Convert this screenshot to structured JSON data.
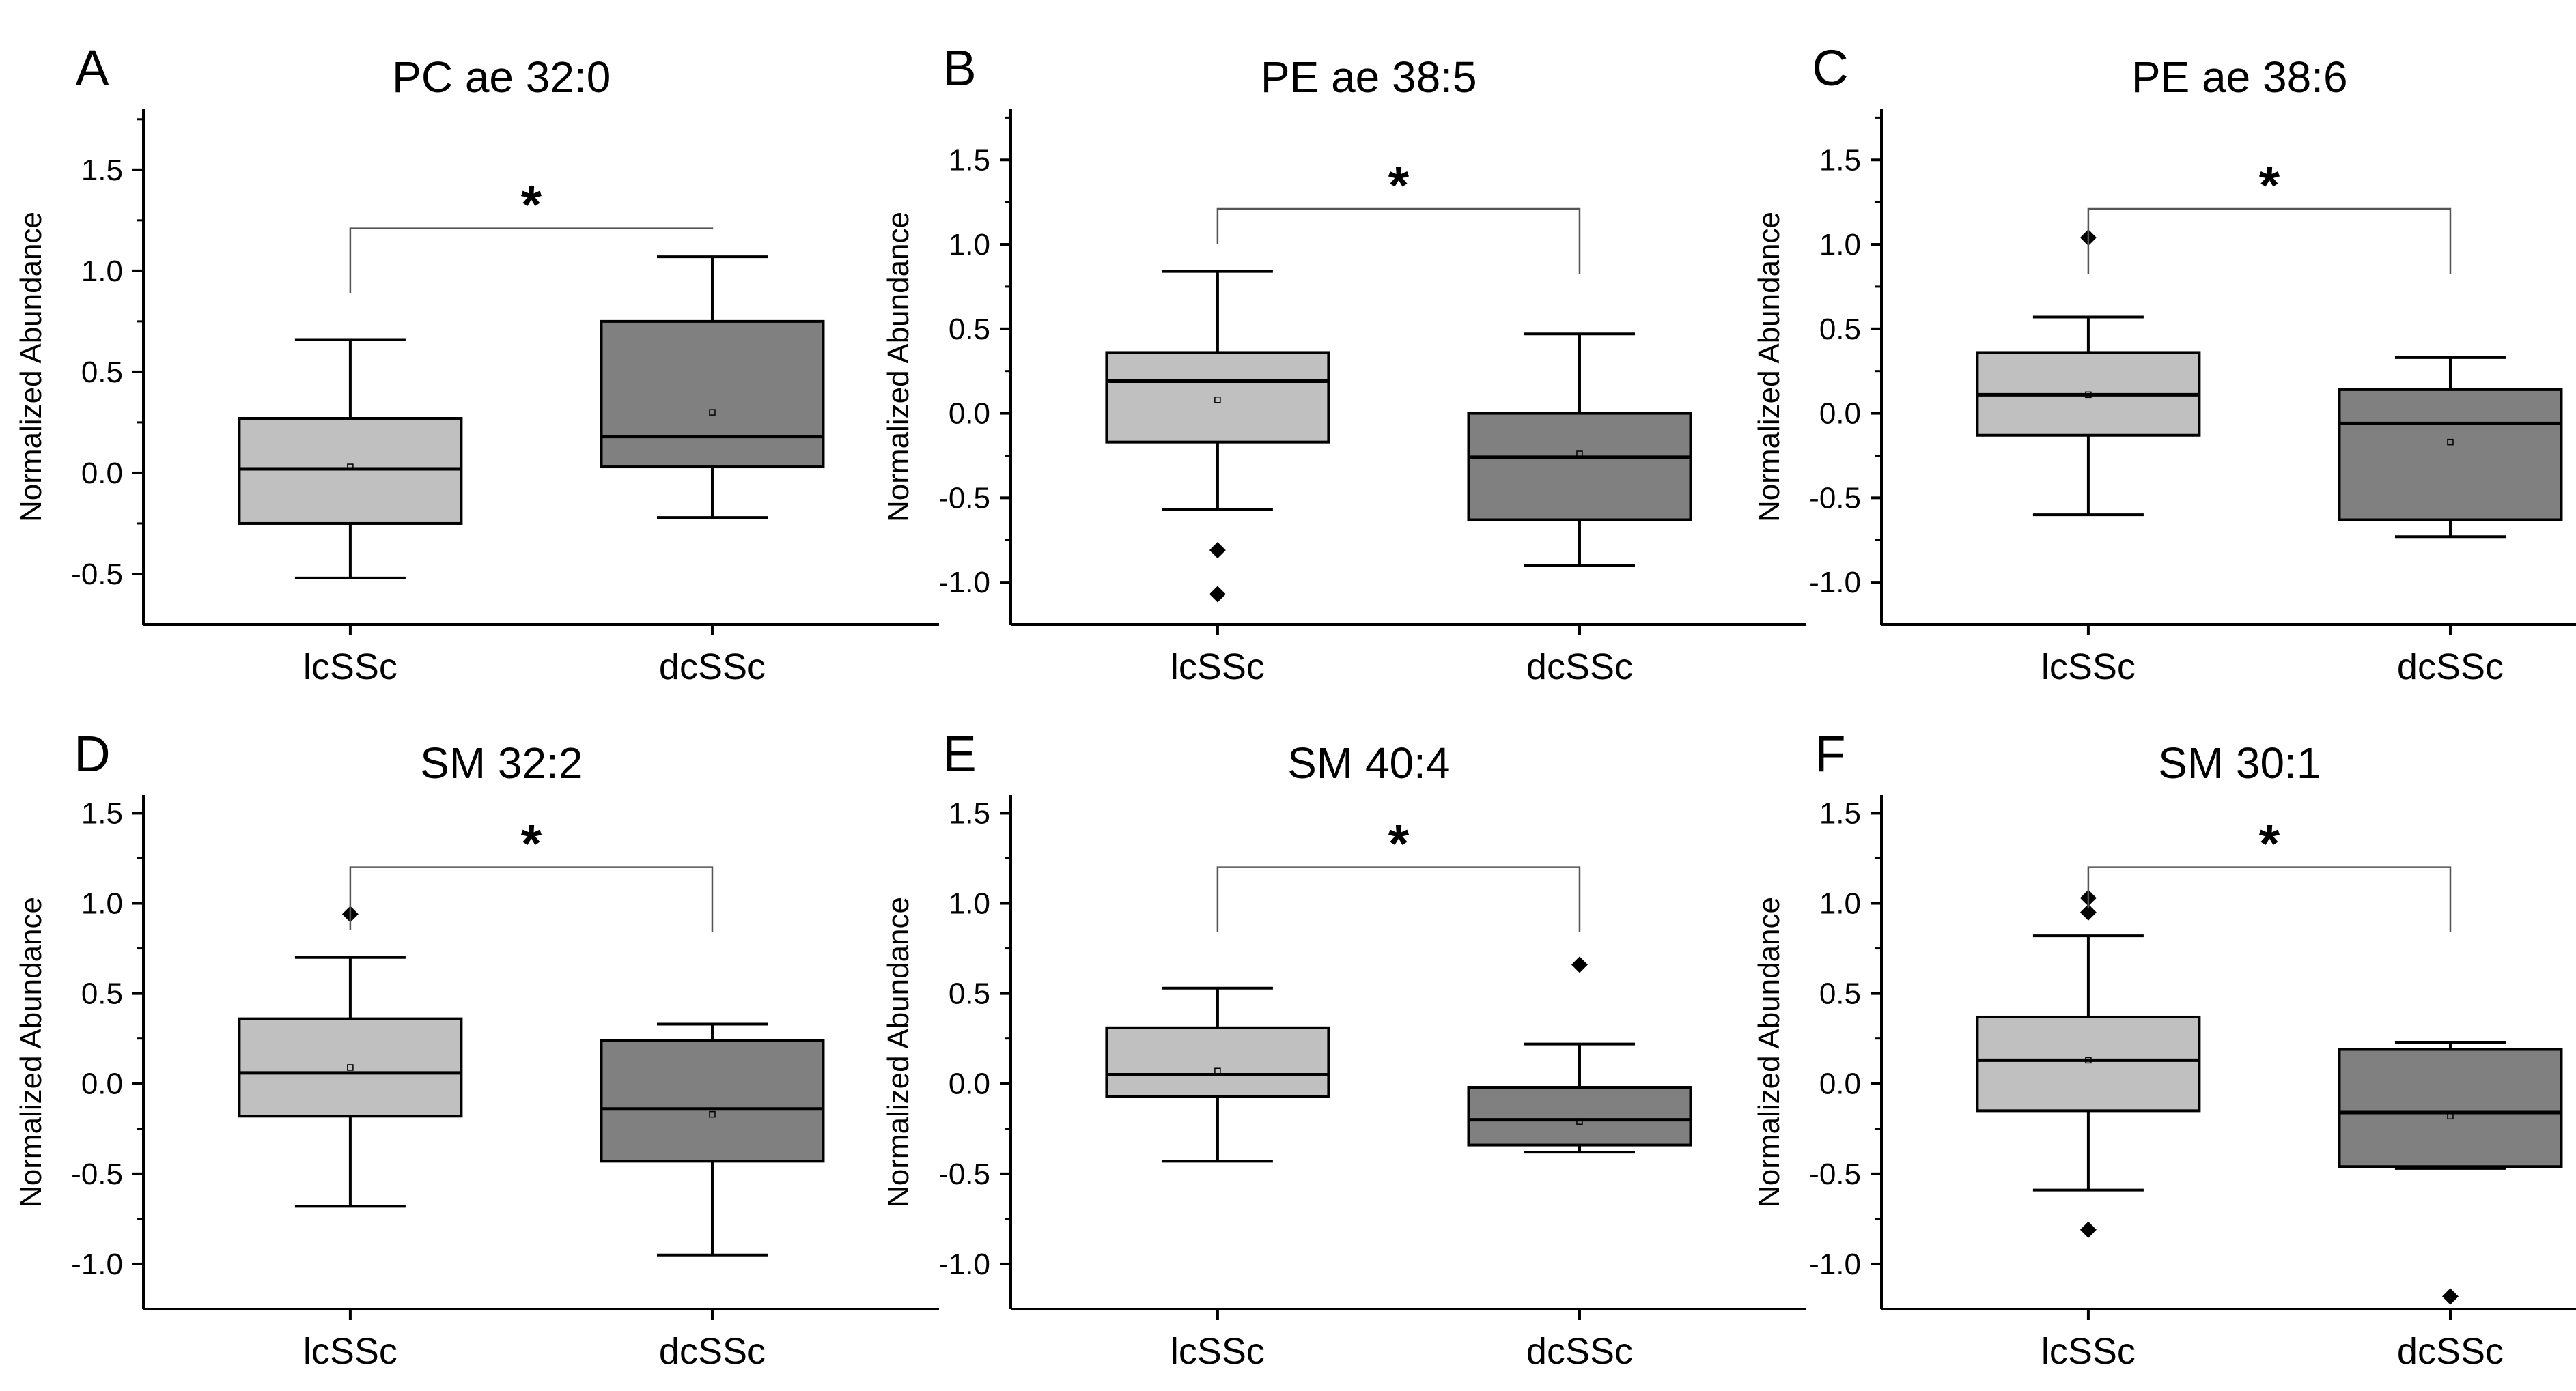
{
  "chart_data": [
    {
      "type": "box",
      "panel": "A",
      "title": "PC ae 32:0",
      "ylabel": "Normalized Abundance",
      "ylim": [
        -0.75,
        1.8
      ],
      "yticks": [
        "-0.5",
        "0.0",
        "0.5",
        "1.0",
        "1.5"
      ],
      "categories": [
        "lcSSc",
        "dcSSc"
      ],
      "significance": "*",
      "boxes": [
        {
          "category": "lcSSc",
          "whisker_low": -0.52,
          "q1": -0.25,
          "median": 0.02,
          "q3": 0.27,
          "whisker_high": 0.66,
          "mean": 0.03,
          "outliers": [],
          "color": "#c0c0c0"
        },
        {
          "category": "dcSSc",
          "whisker_low": -0.22,
          "q1": 0.03,
          "median": 0.18,
          "q3": 0.75,
          "whisker_high": 1.07,
          "mean": 0.3,
          "outliers": [],
          "color": "#808080"
        }
      ],
      "bracket_y": 1.21
    },
    {
      "type": "box",
      "panel": "B",
      "title": "PE ae 38:5",
      "ylabel": "Normalized Abundance",
      "ylim": [
        -1.25,
        1.8
      ],
      "yticks": [
        "-1.0",
        "-0.5",
        "0.0",
        "0.5",
        "1.0",
        "1.5"
      ],
      "categories": [
        "lcSSc",
        "dcSSc"
      ],
      "significance": "*",
      "boxes": [
        {
          "category": "lcSSc",
          "whisker_low": -0.57,
          "q1": -0.17,
          "median": 0.19,
          "q3": 0.36,
          "whisker_high": 0.84,
          "mean": 0.08,
          "outliers": [
            -0.81,
            -1.07
          ],
          "color": "#c0c0c0"
        },
        {
          "category": "dcSSc",
          "whisker_low": -0.9,
          "q1": -0.63,
          "median": -0.26,
          "q3": 0.0,
          "whisker_high": 0.47,
          "mean": -0.24,
          "outliers": [],
          "color": "#808080"
        }
      ],
      "bracket_y": 1.21
    },
    {
      "type": "box",
      "panel": "C",
      "title": "PE ae 38:6",
      "ylabel": "Normalized Abundance",
      "ylim": [
        -1.25,
        1.8
      ],
      "yticks": [
        "-1.0",
        "-0.5",
        "0.0",
        "0.5",
        "1.0",
        "1.5"
      ],
      "categories": [
        "lcSSc",
        "dcSSc"
      ],
      "significance": "*",
      "boxes": [
        {
          "category": "lcSSc",
          "whisker_low": -0.6,
          "q1": -0.13,
          "median": 0.11,
          "q3": 0.36,
          "whisker_high": 0.57,
          "mean": 0.11,
          "outliers": [
            1.04
          ],
          "color": "#c0c0c0"
        },
        {
          "category": "dcSSc",
          "whisker_low": -0.73,
          "q1": -0.63,
          "median": -0.06,
          "q3": 0.14,
          "whisker_high": 0.33,
          "mean": -0.17,
          "outliers": [],
          "color": "#808080"
        }
      ],
      "bracket_y": 1.21
    },
    {
      "type": "box",
      "panel": "D",
      "title": "SM 32:2",
      "ylabel": "Normalized Abundance",
      "ylim": [
        -1.25,
        1.6
      ],
      "yticks": [
        "-1.0",
        "-0.5",
        "0.0",
        "0.5",
        "1.0",
        "1.5"
      ],
      "categories": [
        "lcSSc",
        "dcSSc"
      ],
      "significance": "*",
      "boxes": [
        {
          "category": "lcSSc",
          "whisker_low": -0.68,
          "q1": -0.18,
          "median": 0.06,
          "q3": 0.36,
          "whisker_high": 0.7,
          "mean": 0.09,
          "outliers": [
            0.94
          ],
          "color": "#c0c0c0"
        },
        {
          "category": "dcSSc",
          "whisker_low": -0.95,
          "q1": -0.43,
          "median": -0.14,
          "q3": 0.24,
          "whisker_high": 0.33,
          "mean": -0.17,
          "outliers": [],
          "color": "#808080"
        }
      ],
      "bracket_y": 1.2
    },
    {
      "type": "box",
      "panel": "E",
      "title": "SM 40:4",
      "ylabel": "Normalized Abundance",
      "ylim": [
        -1.25,
        1.6
      ],
      "yticks": [
        "-1.0",
        "-0.5",
        "0.0",
        "0.5",
        "1.0",
        "1.5"
      ],
      "categories": [
        "lcSSc",
        "dcSSc"
      ],
      "significance": "*",
      "boxes": [
        {
          "category": "lcSSc",
          "whisker_low": -0.43,
          "q1": -0.07,
          "median": 0.05,
          "q3": 0.31,
          "whisker_high": 0.53,
          "mean": 0.07,
          "outliers": [],
          "color": "#c0c0c0"
        },
        {
          "category": "dcSSc",
          "whisker_low": -0.38,
          "q1": -0.34,
          "median": -0.2,
          "q3": -0.02,
          "whisker_high": 0.22,
          "mean": -0.21,
          "outliers": [
            0.66
          ],
          "color": "#808080"
        }
      ],
      "bracket_y": 1.2
    },
    {
      "type": "box",
      "panel": "F",
      "title": "SM 30:1",
      "ylabel": "Normalized Abundance",
      "ylim": [
        -1.25,
        1.6
      ],
      "yticks": [
        "-1.0",
        "-0.5",
        "0.0",
        "0.5",
        "1.0",
        "1.5"
      ],
      "categories": [
        "lcSSc",
        "dcSSc"
      ],
      "significance": "*",
      "boxes": [
        {
          "category": "lcSSc",
          "whisker_low": -0.59,
          "q1": -0.15,
          "median": 0.13,
          "q3": 0.37,
          "whisker_high": 0.82,
          "mean": 0.13,
          "outliers": [
            -0.81,
            0.95,
            1.03
          ],
          "color": "#c0c0c0"
        },
        {
          "category": "dcSSc",
          "whisker_low": -0.47,
          "q1": -0.46,
          "median": -0.16,
          "q3": 0.19,
          "whisker_high": 0.23,
          "mean": -0.18,
          "outliers": [
            -1.18
          ],
          "color": "#808080"
        }
      ],
      "bracket_y": 1.2
    }
  ]
}
